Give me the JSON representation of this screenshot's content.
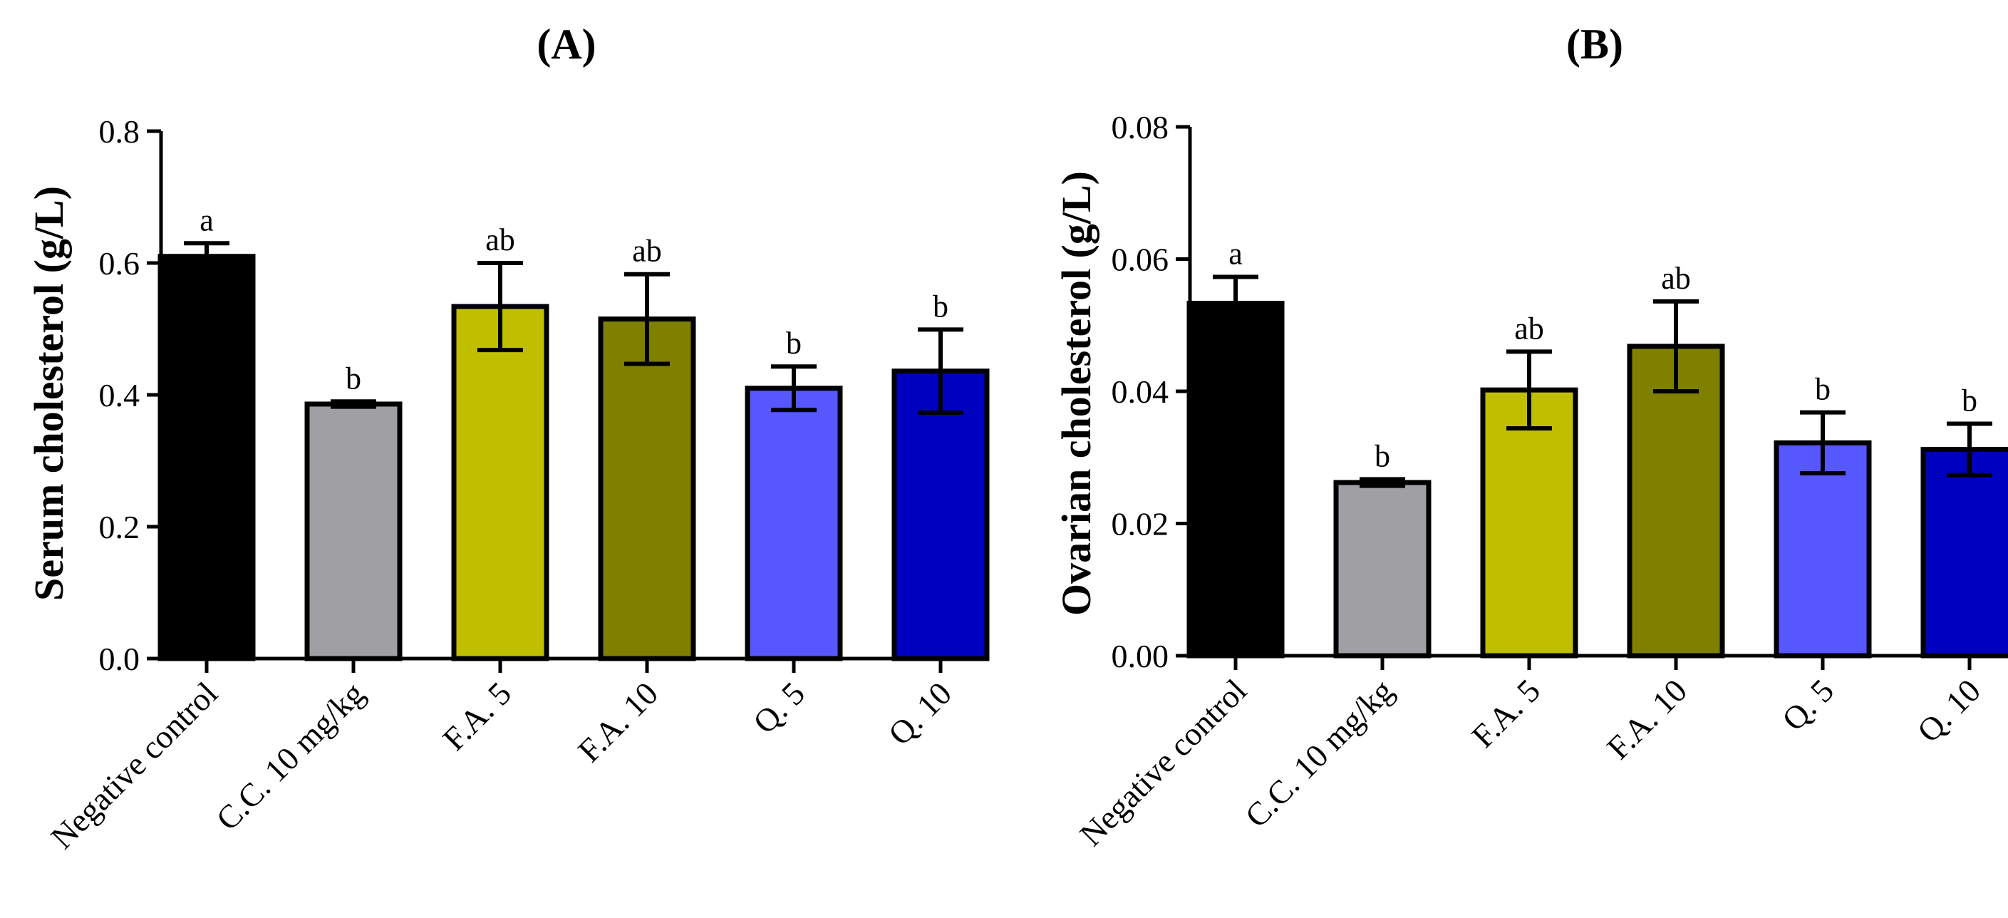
{
  "chart_data": [
    {
      "type": "bar",
      "title": "(A)",
      "xlabel": "",
      "ylabel": "Serum cholesterol (g/L)",
      "ylim": [
        0,
        0.8
      ],
      "yticks": [
        0.0,
        0.2,
        0.4,
        0.6,
        0.8
      ],
      "ytick_labels": [
        "0.0",
        "0.2",
        "0.4",
        "0.6",
        "0.8"
      ],
      "categories": [
        "Negative control",
        "C.C. 10 mg/kg",
        "F.A. 5",
        "F.A. 10",
        "Q. 5",
        "Q. 10"
      ],
      "values": [
        0.61,
        0.386,
        0.534,
        0.515,
        0.41,
        0.436
      ],
      "errors": [
        0.02,
        0.004,
        0.066,
        0.068,
        0.033,
        0.063
      ],
      "significance": [
        "a",
        "b",
        "ab",
        "ab",
        "b",
        "b"
      ],
      "colors": [
        "#000000",
        "#a09fa4",
        "#bfbf00",
        "#7f7f00",
        "#5757ff",
        "#0000c0"
      ]
    },
    {
      "type": "bar",
      "title": "(B)",
      "xlabel": "",
      "ylabel": "Ovarian cholesterol (g/L)",
      "ylim": [
        0,
        0.08
      ],
      "yticks": [
        0.0,
        0.02,
        0.04,
        0.06,
        0.08
      ],
      "ytick_labels": [
        "0.00",
        "0.02",
        "0.04",
        "0.06",
        "0.08"
      ],
      "categories": [
        "Negative control",
        "C.C. 10 mg/kg",
        "F.A. 5",
        "F.A. 10",
        "Q. 5",
        "Q. 10"
      ],
      "values": [
        0.0533,
        0.0262,
        0.0402,
        0.0468,
        0.0322,
        0.0312
      ],
      "errors": [
        0.004,
        0.0005,
        0.0058,
        0.0068,
        0.0046,
        0.0039
      ],
      "significance": [
        "a",
        "b",
        "ab",
        "ab",
        "b",
        "b"
      ],
      "colors": [
        "#000000",
        "#a09fa4",
        "#bfbf00",
        "#7f7f00",
        "#5757ff",
        "#0000c0"
      ]
    }
  ]
}
